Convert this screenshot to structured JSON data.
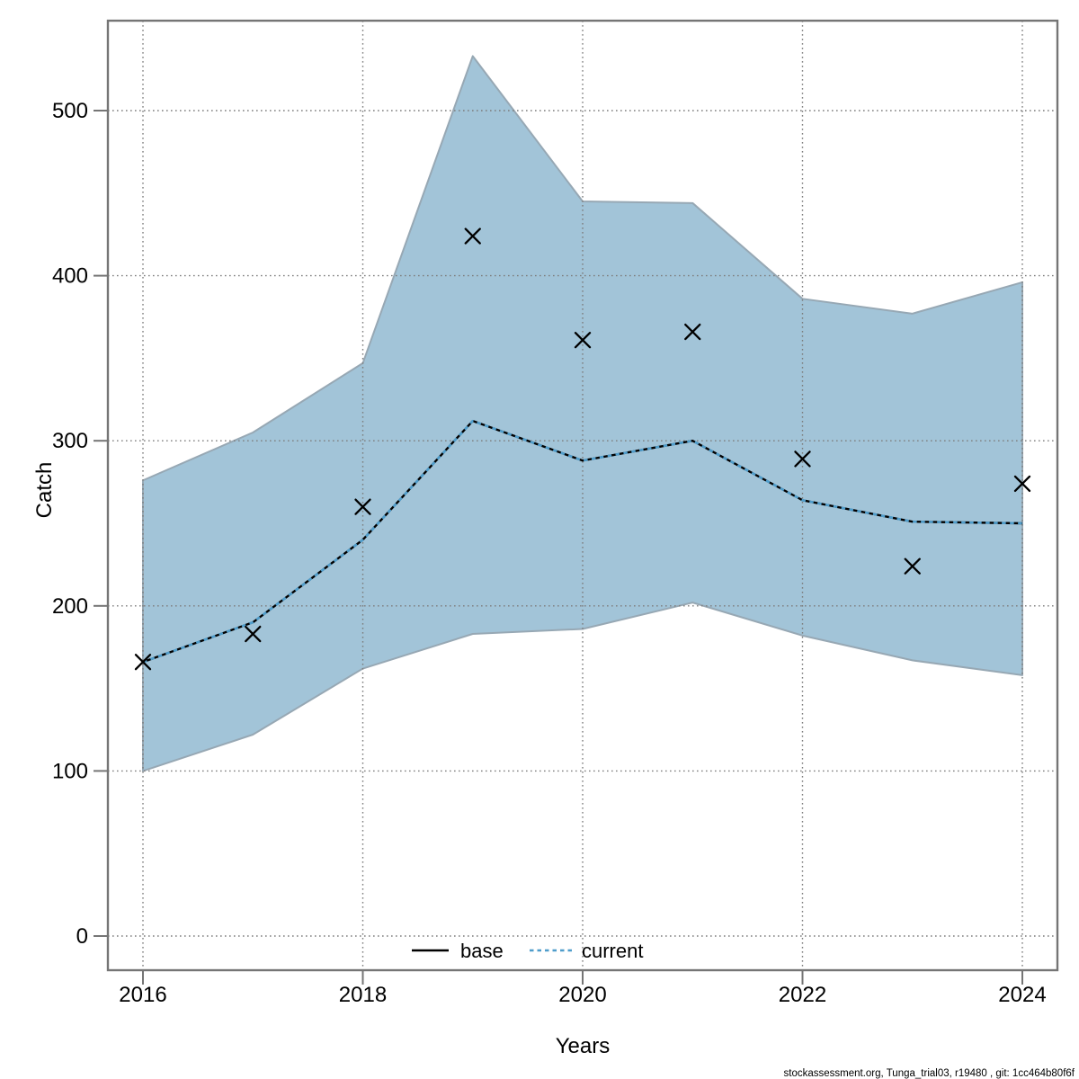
{
  "footer": "stockassessment.org, Tunga_trial03, r19480 , git: 1cc464b80f6f",
  "chart_data": {
    "type": "line",
    "subtype": "fit-line-with-confidence-band-and-observations",
    "title": "",
    "xlabel": "Years",
    "ylabel": "Catch",
    "x": [
      2016,
      2017,
      2018,
      2019,
      2020,
      2021,
      2022,
      2023,
      2024
    ],
    "series": [
      {
        "name": "base",
        "style": "solid",
        "color": "#000000",
        "values": [
          166,
          190,
          240,
          312,
          288,
          300,
          264,
          251,
          250
        ]
      },
      {
        "name": "current",
        "style": "dotted",
        "color": "#4f9dcb",
        "values": [
          166,
          190,
          240,
          312,
          288,
          300,
          264,
          251,
          250
        ]
      }
    ],
    "observations": {
      "name": "observed-catch",
      "marker": "x",
      "color": "#000000",
      "values": [
        166,
        183,
        260,
        424,
        361,
        366,
        289,
        224,
        274
      ]
    },
    "band": {
      "name": "confidence-interval",
      "color": "#a2c4d8",
      "low": [
        100,
        122,
        162,
        183,
        186,
        202,
        182,
        167,
        158
      ],
      "high": [
        276,
        305,
        347,
        533,
        445,
        444,
        386,
        377,
        396
      ]
    },
    "xlim": [
      2016,
      2024
    ],
    "ylim": [
      0,
      533
    ],
    "x_ticks": [
      2016,
      2018,
      2020,
      2022,
      2024
    ],
    "y_ticks": [
      0,
      100,
      200,
      300,
      400,
      500
    ],
    "grid": true,
    "legend": {
      "position": "bottom-center-inside",
      "entries": [
        {
          "label": "base",
          "sample": "solid-black-line"
        },
        {
          "label": "current",
          "sample": "dotted-blue-line"
        }
      ]
    }
  }
}
